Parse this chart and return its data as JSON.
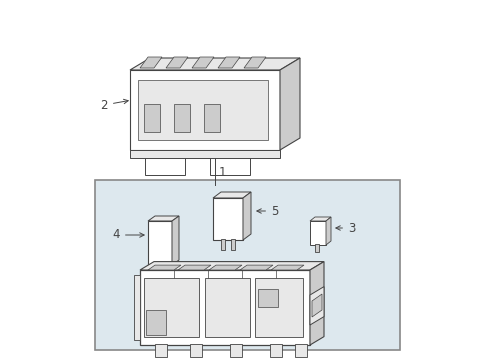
{
  "bg": "#ffffff",
  "lc": "#444444",
  "lc2": "#666666",
  "fill_white": "#ffffff",
  "fill_light": "#e8e8e8",
  "fill_mid": "#cccccc",
  "fill_dark": "#aaaaaa",
  "fill_box": "#dde8ee",
  "fig_w": 4.9,
  "fig_h": 3.6,
  "dpi": 100,
  "fs": 8.5,
  "lw": 0.8
}
